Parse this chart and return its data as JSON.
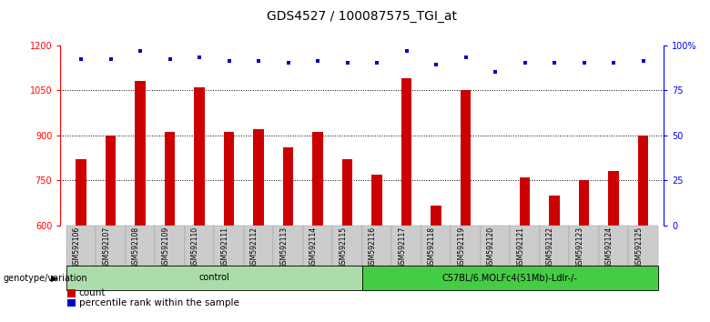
{
  "title": "GDS4527 / 100087575_TGI_at",
  "samples": [
    "GSM592106",
    "GSM592107",
    "GSM592108",
    "GSM592109",
    "GSM592110",
    "GSM592111",
    "GSM592112",
    "GSM592113",
    "GSM592114",
    "GSM592115",
    "GSM592116",
    "GSM592117",
    "GSM592118",
    "GSM592119",
    "GSM592120",
    "GSM592121",
    "GSM592122",
    "GSM592123",
    "GSM592124",
    "GSM592125"
  ],
  "counts": [
    820,
    900,
    1080,
    910,
    1060,
    910,
    920,
    860,
    910,
    820,
    770,
    1090,
    665,
    1050,
    600,
    760,
    700,
    750,
    780,
    900
  ],
  "percentiles": [
    92,
    92,
    97,
    92,
    93,
    91,
    91,
    90,
    91,
    90,
    90,
    97,
    89,
    93,
    85,
    90,
    90,
    90,
    90,
    91
  ],
  "ylim_left": [
    600,
    1200
  ],
  "ylim_right": [
    0,
    100
  ],
  "yticks_left": [
    600,
    750,
    900,
    1050,
    1200
  ],
  "yticks_right": [
    0,
    25,
    50,
    75,
    100
  ],
  "bar_color": "#cc0000",
  "dot_color": "#0000cc",
  "bg_color": "#ffffff",
  "genotype_groups": [
    {
      "label": "control",
      "start": 0,
      "end": 10,
      "color": "#aaddaa"
    },
    {
      "label": "C57BL/6.MOLFc4(51Mb)-Ldlr-/-",
      "start": 10,
      "end": 20,
      "color": "#44cc44"
    }
  ],
  "genotype_label": "genotype/variation",
  "legend_count": "count",
  "legend_pct": "percentile rank within the sample",
  "title_fontsize": 10,
  "legend_fontsize": 7.5
}
